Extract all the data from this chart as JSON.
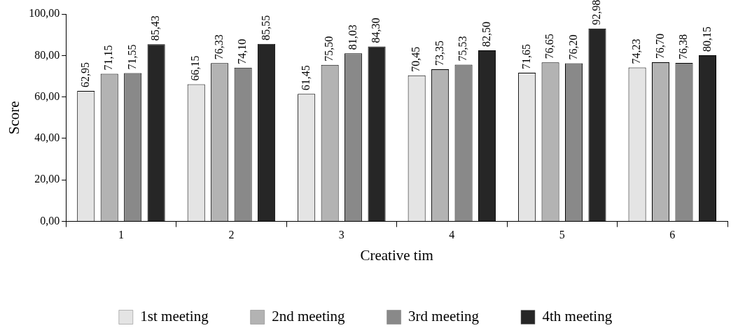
{
  "chart_data": {
    "type": "bar",
    "xlabel": "Creative tim",
    "ylabel": "Score",
    "categories": [
      "1",
      "2",
      "3",
      "4",
      "5",
      "6"
    ],
    "series": [
      {
        "name": "1st meeting",
        "color": "#e4e4e4",
        "values": [
          62.95,
          66.15,
          61.45,
          70.45,
          71.65,
          74.23
        ],
        "value_labels": [
          "62,95",
          "66,15",
          "61,45",
          "70,45",
          "71,65",
          "74,23"
        ]
      },
      {
        "name": "2nd meeting",
        "color": "#b3b3b3",
        "values": [
          71.15,
          76.33,
          75.5,
          73.35,
          76.65,
          76.7
        ],
        "value_labels": [
          "71,15",
          "76,33",
          "75,50",
          "73,35",
          "76,65",
          "76,70"
        ]
      },
      {
        "name": "3rd meeting",
        "color": "#898989",
        "values": [
          71.55,
          74.1,
          81.03,
          75.53,
          76.2,
          76.38
        ],
        "value_labels": [
          "71,55",
          "74,10",
          "81,03",
          "75,53",
          "76,20",
          "76,38"
        ]
      },
      {
        "name": "4th meeting",
        "color": "#262626",
        "values": [
          85.43,
          85.55,
          84.3,
          82.5,
          92.98,
          80.15
        ],
        "value_labels": [
          "85,43",
          "85,55",
          "84,30",
          "82,50",
          "92,98",
          "80,15"
        ]
      }
    ],
    "ylim": [
      0,
      100
    ],
    "yticks": [
      {
        "value": 0,
        "label": "0,00"
      },
      {
        "value": 20,
        "label": "20,00"
      },
      {
        "value": 40,
        "label": "40,00"
      },
      {
        "value": 60,
        "label": "60,00"
      },
      {
        "value": 80,
        "label": "80,00"
      },
      {
        "value": 100,
        "label": "100,00"
      }
    ],
    "grid": false,
    "legend": "bottom"
  }
}
